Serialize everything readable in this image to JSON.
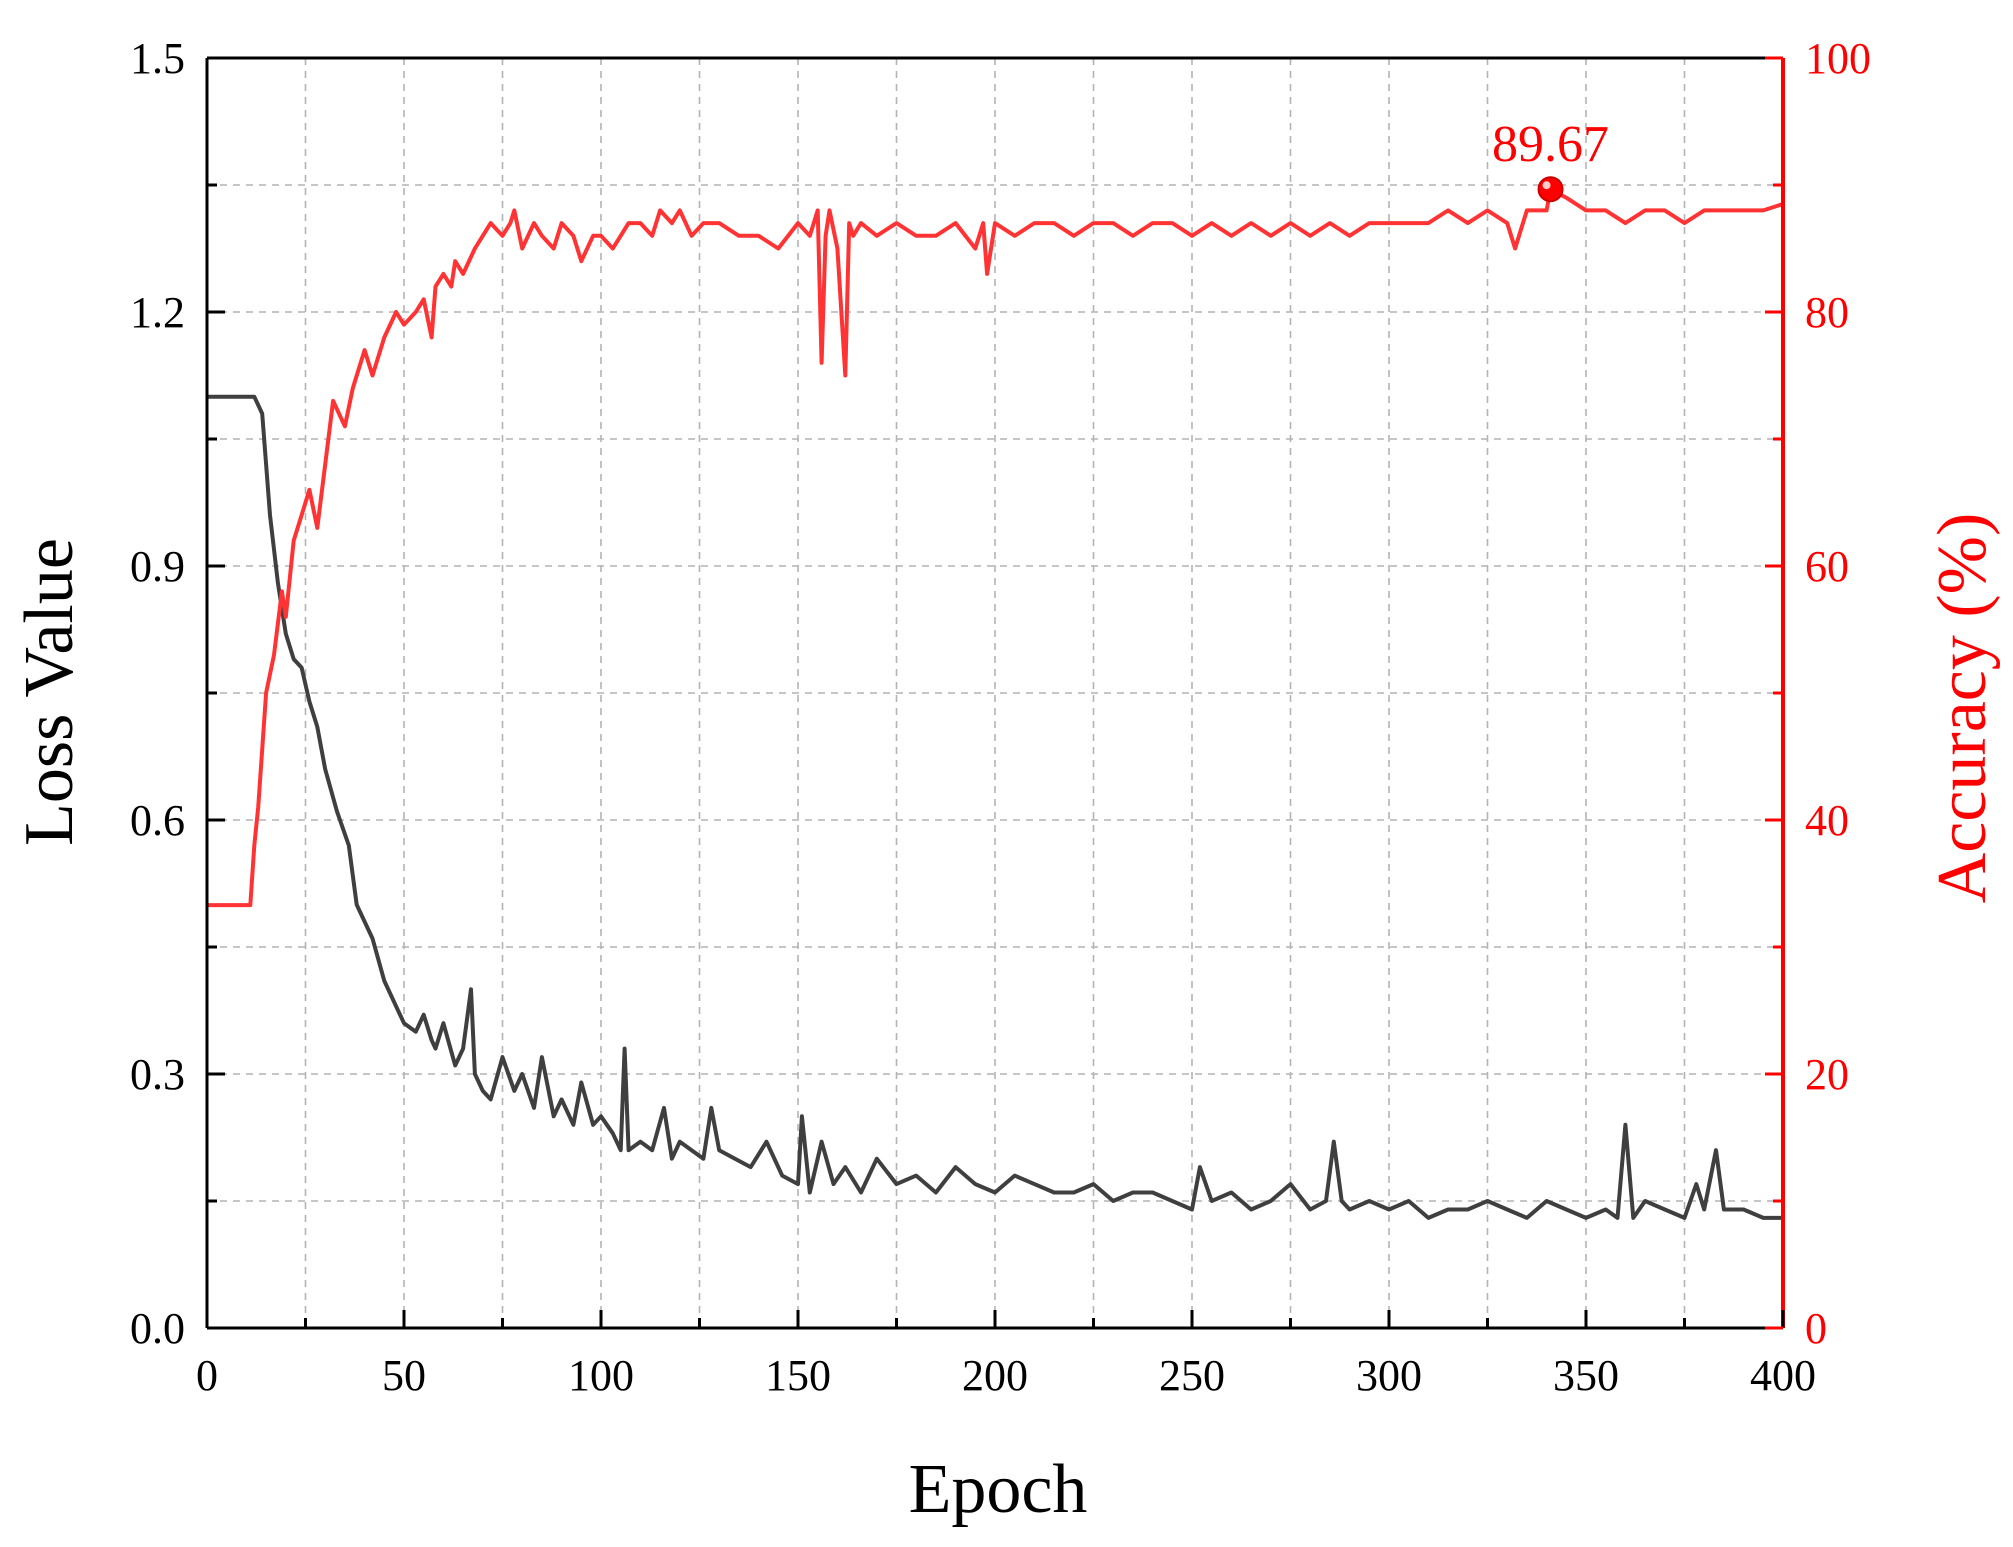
{
  "chart_data": {
    "type": "line",
    "xlabel": "Epoch",
    "ylabel": "Loss Value",
    "ylabel_right": "Accuracy (%)",
    "xlim": [
      0,
      400
    ],
    "ylim": [
      0,
      1.5
    ],
    "ylim_right": [
      0,
      100
    ],
    "xticks": [
      "0",
      "50",
      "100",
      "150",
      "200",
      "250",
      "300",
      "350",
      "400"
    ],
    "yticks": [
      "0.0",
      "0.3",
      "0.6",
      "0.9",
      "1.2",
      "1.5"
    ],
    "yticks_right": [
      "0",
      "20",
      "40",
      "60",
      "80",
      "100"
    ],
    "grid": true,
    "colors": {
      "loss": "#3f3f3f",
      "accuracy": "#ff3333",
      "right_axis": "#ff0000",
      "grid": "#b4b4b4"
    },
    "series": [
      {
        "axis": "left",
        "x": [
          0,
          5,
          10,
          12,
          14,
          16,
          18,
          20,
          22,
          24,
          26,
          28,
          30,
          33,
          36,
          38,
          40,
          42,
          45,
          48,
          50,
          53,
          55,
          57,
          58,
          60,
          63,
          65,
          67,
          68,
          70,
          72,
          75,
          78,
          80,
          83,
          85,
          88,
          90,
          93,
          95,
          98,
          100,
          103,
          105,
          106,
          107,
          110,
          113,
          116,
          118,
          120,
          123,
          126,
          128,
          130,
          134,
          138,
          142,
          146,
          150,
          151,
          153,
          156,
          159,
          162,
          166,
          170,
          175,
          180,
          185,
          190,
          195,
          200,
          205,
          210,
          215,
          220,
          225,
          230,
          235,
          240,
          245,
          250,
          252,
          255,
          260,
          265,
          270,
          275,
          280,
          284,
          286,
          288,
          290,
          295,
          300,
          305,
          310,
          315,
          320,
          325,
          330,
          335,
          340,
          345,
          350,
          355,
          358,
          360,
          362,
          365,
          370,
          375,
          378,
          380,
          383,
          385,
          390,
          395,
          400
        ],
        "values": [
          1.1,
          1.1,
          1.1,
          1.1,
          1.08,
          0.96,
          0.88,
          0.82,
          0.79,
          0.78,
          0.74,
          0.71,
          0.66,
          0.61,
          0.57,
          0.5,
          0.48,
          0.46,
          0.41,
          0.38,
          0.36,
          0.35,
          0.37,
          0.34,
          0.33,
          0.36,
          0.31,
          0.33,
          0.4,
          0.3,
          0.28,
          0.27,
          0.32,
          0.28,
          0.3,
          0.26,
          0.32,
          0.25,
          0.27,
          0.24,
          0.29,
          0.24,
          0.25,
          0.23,
          0.21,
          0.33,
          0.21,
          0.22,
          0.21,
          0.26,
          0.2,
          0.22,
          0.21,
          0.2,
          0.26,
          0.21,
          0.2,
          0.19,
          0.22,
          0.18,
          0.17,
          0.25,
          0.16,
          0.22,
          0.17,
          0.19,
          0.16,
          0.2,
          0.17,
          0.18,
          0.16,
          0.19,
          0.17,
          0.16,
          0.18,
          0.17,
          0.16,
          0.16,
          0.17,
          0.15,
          0.16,
          0.16,
          0.15,
          0.14,
          0.19,
          0.15,
          0.16,
          0.14,
          0.15,
          0.17,
          0.14,
          0.15,
          0.22,
          0.15,
          0.14,
          0.15,
          0.14,
          0.15,
          0.13,
          0.14,
          0.14,
          0.15,
          0.14,
          0.13,
          0.15,
          0.14,
          0.13,
          0.14,
          0.13,
          0.24,
          0.13,
          0.15,
          0.14,
          0.13,
          0.17,
          0.14,
          0.21,
          0.14,
          0.14,
          0.13,
          0.13
        ]
      },
      {
        "axis": "right",
        "x": [
          0,
          5,
          10,
          11,
          12,
          13,
          15,
          17,
          19,
          20,
          22,
          24,
          26,
          28,
          30,
          32,
          35,
          37,
          40,
          42,
          45,
          48,
          50,
          53,
          55,
          57,
          58,
          60,
          62,
          63,
          65,
          68,
          70,
          72,
          75,
          77,
          78,
          80,
          83,
          85,
          88,
          90,
          93,
          95,
          98,
          100,
          103,
          105,
          107,
          110,
          113,
          115,
          118,
          120,
          123,
          126,
          130,
          135,
          140,
          145,
          150,
          153,
          155,
          156,
          157,
          158,
          160,
          162,
          163,
          164,
          166,
          170,
          175,
          180,
          185,
          190,
          195,
          197,
          198,
          200,
          205,
          210,
          215,
          220,
          225,
          230,
          235,
          240,
          245,
          250,
          255,
          260,
          265,
          270,
          275,
          280,
          285,
          290,
          295,
          300,
          305,
          310,
          315,
          320,
          325,
          330,
          332,
          335,
          340,
          341,
          345,
          350,
          355,
          360,
          365,
          370,
          375,
          380,
          385,
          390,
          395,
          400
        ],
        "values": [
          33.3,
          33.3,
          33.3,
          33.3,
          38,
          41,
          50,
          53,
          58,
          56,
          62,
          64,
          66,
          63,
          68,
          73,
          71,
          74,
          77,
          75,
          78,
          80,
          79,
          80,
          81,
          78,
          82,
          83,
          82,
          84,
          83,
          85,
          86,
          87,
          86,
          87,
          88,
          85,
          87,
          86,
          85,
          87,
          86,
          84,
          86,
          86,
          85,
          86,
          87,
          87,
          86,
          88,
          87,
          88,
          86,
          87,
          87,
          86,
          86,
          85,
          87,
          86,
          88,
          76,
          86,
          88,
          85,
          75,
          87,
          86,
          87,
          86,
          87,
          86,
          86,
          87,
          85,
          87,
          83,
          87,
          86,
          87,
          87,
          86,
          87,
          87,
          86,
          87,
          87,
          86,
          87,
          86,
          87,
          86,
          87,
          86,
          87,
          86,
          87,
          87,
          87,
          87,
          88,
          87,
          88,
          87,
          85,
          88,
          88,
          89.67,
          89,
          88,
          88,
          87,
          88,
          88,
          87,
          88,
          88,
          88,
          88,
          88.5
        ]
      }
    ],
    "annotation": {
      "text": "89.67",
      "x": 341,
      "y": 89.67,
      "axis": "right"
    }
  }
}
